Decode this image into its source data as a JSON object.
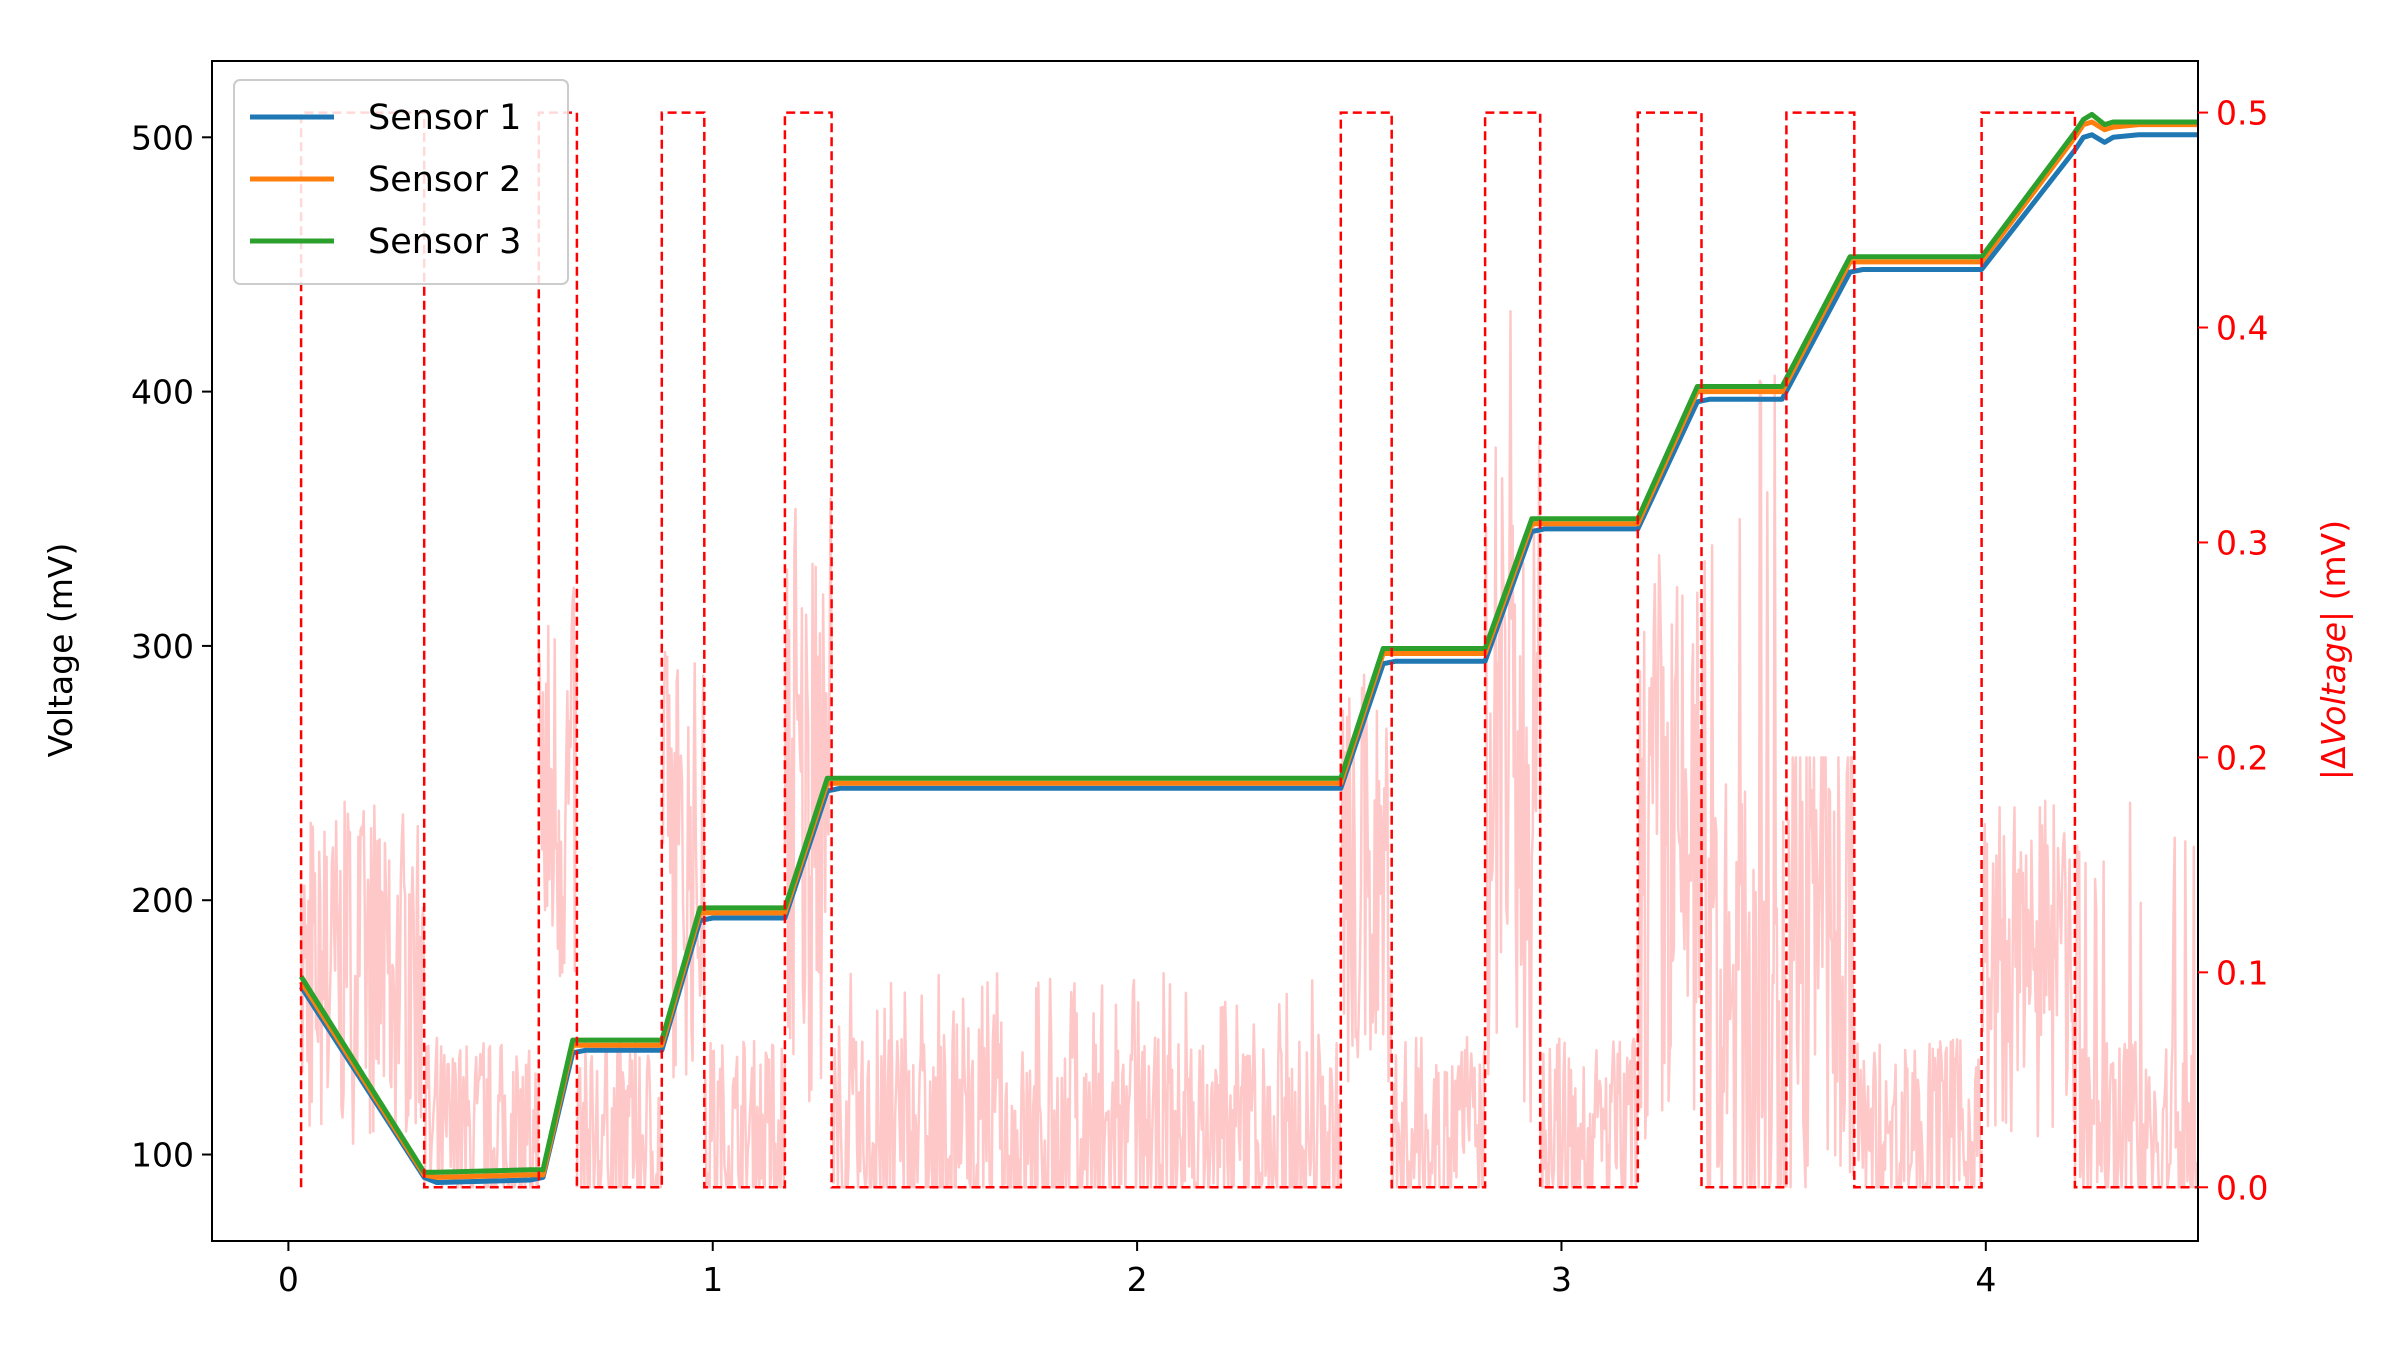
{
  "chart_data": {
    "type": "line",
    "title": "",
    "xlabel": "",
    "xlim": [
      -0.18,
      4.5
    ],
    "xticks": [
      0,
      1,
      2,
      3,
      4
    ],
    "ylabel": "Voltage (mV)",
    "ylim": [
      66,
      530
    ],
    "yticks": [
      100,
      200,
      300,
      400,
      500
    ],
    "y2label_prefix": "|Δ",
    "y2label_italic": "Voltage",
    "y2label_suffix": "| (mV)",
    "y2lim": [
      -0.025,
      0.524
    ],
    "y2ticks": [
      "0.0",
      "0.1",
      "0.2",
      "0.3",
      "0.4",
      "0.5"
    ],
    "grid": false,
    "legend_position": "top-left",
    "series": [
      {
        "name": "Sensor 1",
        "color": "#1f77b4",
        "axis": "left",
        "x": [
          0.03,
          0.32,
          0.35,
          0.57,
          0.6,
          0.67,
          0.7,
          0.88,
          0.97,
          1.0,
          1.17,
          1.27,
          1.3,
          2.48,
          2.58,
          2.61,
          2.82,
          2.93,
          2.96,
          3.18,
          3.32,
          3.35,
          3.52,
          3.68,
          3.71,
          3.99,
          4.21,
          4.23,
          4.25,
          4.28,
          4.3,
          4.36,
          4.5
        ],
        "y": [
          166,
          91,
          89,
          90,
          91,
          140,
          141,
          141,
          192,
          193,
          193,
          243,
          244,
          244,
          293,
          294,
          294,
          345,
          346,
          346,
          396,
          397,
          397,
          447,
          448,
          448,
          495,
          500,
          501,
          498,
          500,
          501,
          501
        ]
      },
      {
        "name": "Sensor 2",
        "color": "#ff7f0e",
        "axis": "left",
        "x": [
          0.03,
          0.32,
          0.35,
          0.57,
          0.6,
          0.67,
          0.7,
          0.88,
          0.97,
          1.0,
          1.17,
          1.27,
          1.3,
          2.48,
          2.58,
          2.61,
          2.82,
          2.93,
          2.96,
          3.18,
          3.32,
          3.35,
          3.52,
          3.68,
          3.71,
          3.99,
          4.21,
          4.23,
          4.25,
          4.28,
          4.3,
          4.36,
          4.5
        ],
        "y": [
          168,
          92,
          91,
          92,
          92,
          143,
          143,
          143,
          195,
          195,
          195,
          246,
          246,
          246,
          297,
          297,
          297,
          348,
          348,
          348,
          400,
          400,
          400,
          451,
          451,
          451,
          500,
          505,
          506,
          503,
          504,
          505,
          505
        ]
      },
      {
        "name": "Sensor 3",
        "color": "#2ca02c",
        "axis": "left",
        "x": [
          0.03,
          0.32,
          0.35,
          0.57,
          0.6,
          0.67,
          0.7,
          0.88,
          0.97,
          1.0,
          1.17,
          1.27,
          1.3,
          2.48,
          2.58,
          2.61,
          2.82,
          2.93,
          2.96,
          3.18,
          3.32,
          3.35,
          3.52,
          3.68,
          3.71,
          3.99,
          4.21,
          4.23,
          4.25,
          4.28,
          4.3,
          4.36,
          4.5
        ],
        "y": [
          170,
          93,
          93,
          94,
          94,
          145,
          145,
          145,
          197,
          197,
          197,
          248,
          248,
          248,
          299,
          299,
          299,
          350,
          350,
          350,
          402,
          402,
          402,
          453,
          453,
          453,
          502,
          507,
          509,
          505,
          506,
          506,
          506
        ]
      },
      {
        "name": "",
        "color": "#ff0000",
        "style": "dashed",
        "axis": "right",
        "x": [
          0.03,
          0.03,
          0.32,
          0.32,
          0.59,
          0.59,
          0.68,
          0.68,
          0.88,
          0.88,
          0.98,
          0.98,
          1.17,
          1.17,
          1.28,
          1.28,
          2.48,
          2.48,
          2.6,
          2.6,
          2.82,
          2.82,
          2.95,
          2.95,
          3.18,
          3.18,
          3.33,
          3.33,
          3.53,
          3.53,
          3.69,
          3.69,
          3.99,
          3.99,
          4.21,
          4.21,
          4.5
        ],
        "y": [
          0,
          0.5,
          0.5,
          0,
          0,
          0.5,
          0.5,
          0,
          0,
          0.5,
          0.5,
          0,
          0,
          0.5,
          0.5,
          0,
          0,
          0.5,
          0.5,
          0,
          0,
          0.5,
          0.5,
          0,
          0,
          0.5,
          0.5,
          0,
          0,
          0.5,
          0.5,
          0,
          0,
          0.5,
          0.5,
          0,
          0
        ]
      },
      {
        "name": "",
        "color": "#ffc8c8",
        "axis": "right",
        "noise_segments": [
          {
            "x": [
              0.03,
              0.32
            ],
            "base": 0.1,
            "spread": 0.08,
            "max": 0.18
          },
          {
            "x": [
              0.32,
              0.59
            ],
            "base": 0.02,
            "spread": 0.05,
            "max": 0.07
          },
          {
            "x": [
              0.59,
              0.68
            ],
            "base": 0.18,
            "spread": 0.1,
            "max": 0.3
          },
          {
            "x": [
              0.68,
              0.88
            ],
            "base": 0.02,
            "spread": 0.05,
            "max": 0.07
          },
          {
            "x": [
              0.88,
              0.98
            ],
            "base": 0.15,
            "spread": 0.1,
            "max": 0.27
          },
          {
            "x": [
              0.98,
              1.17
            ],
            "base": 0.02,
            "spread": 0.05,
            "max": 0.07
          },
          {
            "x": [
              1.17,
              1.28
            ],
            "base": 0.17,
            "spread": 0.13,
            "max": 0.33
          },
          {
            "x": [
              1.28,
              2.48
            ],
            "base": 0.02,
            "spread": 0.05,
            "max": 0.1
          },
          {
            "x": [
              2.48,
              2.6
            ],
            "base": 0.14,
            "spread": 0.1,
            "max": 0.25
          },
          {
            "x": [
              2.6,
              2.82
            ],
            "base": 0.02,
            "spread": 0.05,
            "max": 0.07
          },
          {
            "x": [
              2.82,
              2.95
            ],
            "base": 0.17,
            "spread": 0.14,
            "max": 0.47
          },
          {
            "x": [
              2.95,
              3.18
            ],
            "base": 0.02,
            "spread": 0.05,
            "max": 0.07
          },
          {
            "x": [
              3.18,
              3.33
            ],
            "base": 0.15,
            "spread": 0.14,
            "max": 0.3
          },
          {
            "x": [
              3.33,
              3.53
            ],
            "base": 0.07,
            "spread": 0.12,
            "max": 0.38
          },
          {
            "x": [
              3.53,
              3.69
            ],
            "base": 0.12,
            "spread": 0.13,
            "max": 0.2
          },
          {
            "x": [
              3.69,
              3.99
            ],
            "base": 0.02,
            "spread": 0.05,
            "max": 0.07
          },
          {
            "x": [
              3.99,
              4.21
            ],
            "base": 0.1,
            "spread": 0.08,
            "max": 0.18
          },
          {
            "x": [
              4.21,
              4.5
            ],
            "base": 0.02,
            "spread": 0.05,
            "max": 0.18
          }
        ]
      }
    ]
  }
}
